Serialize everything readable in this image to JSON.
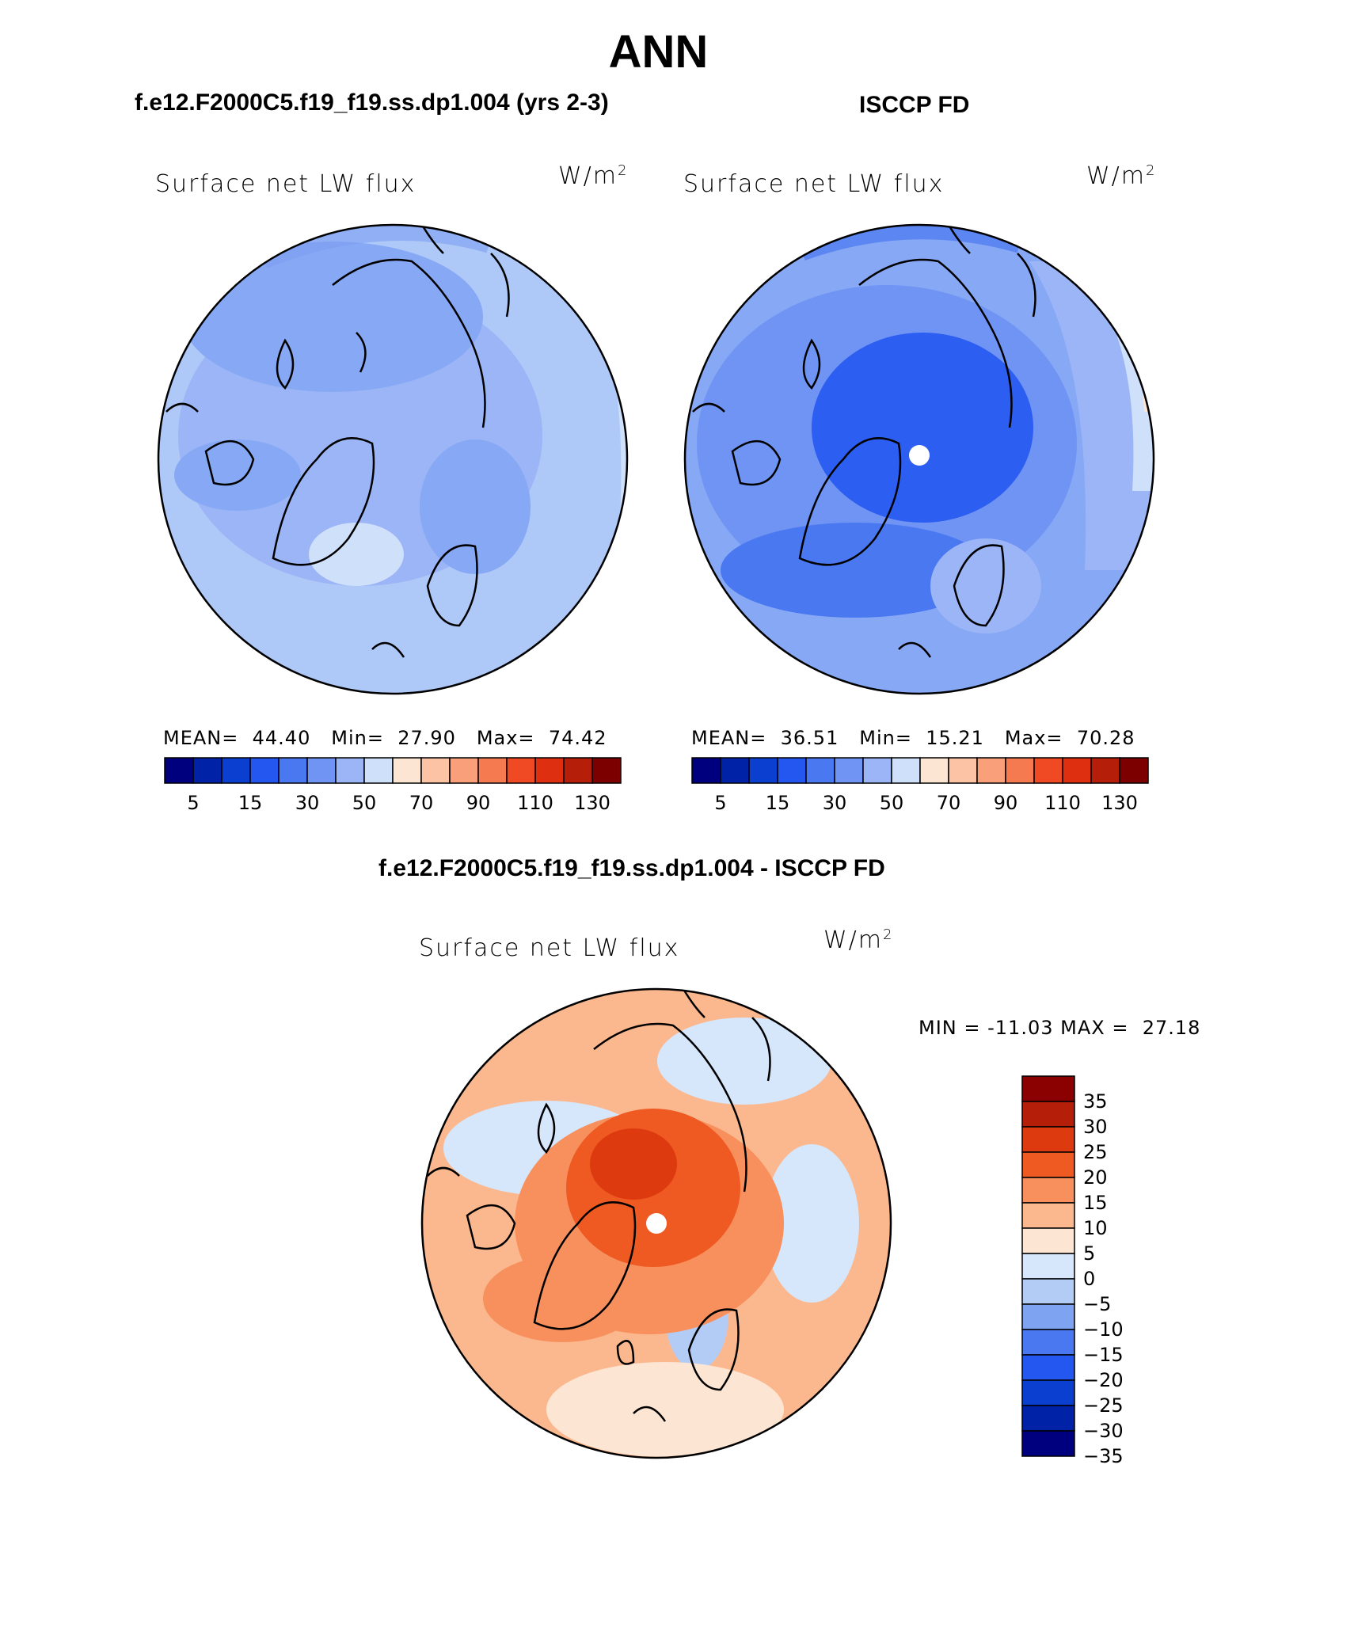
{
  "figure": {
    "title": "ANN",
    "units": "W/m",
    "units_sup": "2"
  },
  "panels": [
    {
      "id": "model",
      "header": "f.e12.F2000C5.f19_f19.ss.dp1.004 (yrs 2-3)",
      "label": "Surface net LW flux",
      "stats": {
        "mean_label": "MEAN=",
        "mean": "44.40",
        "min_label": "Min=",
        "min": "27.90",
        "max_label": "Max=",
        "max": "74.42"
      }
    },
    {
      "id": "obs",
      "header": "ISCCP FD",
      "label": "Surface net LW flux",
      "stats": {
        "mean_label": "MEAN=",
        "mean": "36.51",
        "min_label": "Min=",
        "min": "15.21",
        "max_label": "Max=",
        "max": "70.28"
      }
    }
  ],
  "diff": {
    "header": "f.e12.F2000C5.f19_f19.ss.dp1.004 - ISCCP FD",
    "label": "Surface net LW flux",
    "min_label": "MIN =",
    "min": "-11.03",
    "max_label": "MAX =",
    "max": "27.18"
  },
  "colorbars": {
    "abs_colors": [
      "#00007f",
      "#0022a6",
      "#0a3fd0",
      "#2456f0",
      "#4a78f0",
      "#6f94f4",
      "#9bb5f6",
      "#cfe0fb",
      "#fde5d3",
      "#fcc4a4",
      "#f9a07a",
      "#f57a4f",
      "#ef4a24",
      "#de2f10",
      "#b51f0a",
      "#7c0000"
    ],
    "abs_ticks": [
      "5",
      "15",
      "30",
      "50",
      "70",
      "90",
      "110",
      "130"
    ],
    "diff_colors_top_to_bottom": [
      "#8b0000",
      "#b51f0a",
      "#de3a10",
      "#ee5a22",
      "#f8905e",
      "#fbb88e",
      "#fde5d3",
      "#d6e6fb",
      "#b3ccf6",
      "#7ea3f1",
      "#4a78f0",
      "#2456f0",
      "#0a3fd0",
      "#0022a6",
      "#00007f"
    ],
    "diff_ticks": [
      "35",
      "30",
      "25",
      "20",
      "15",
      "10",
      "5",
      "0",
      "-5",
      "-10",
      "-15",
      "-20",
      "-25",
      "-30",
      "-35"
    ]
  }
}
